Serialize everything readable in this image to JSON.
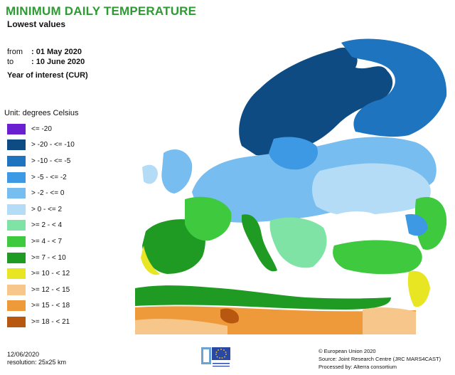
{
  "title": "MINIMUM DAILY TEMPERATURE",
  "subtitle": "Lowest values",
  "period": {
    "from_label": "from",
    "from_value": ": 01 May 2020",
    "to_label": "to",
    "to_value": ": 10 June 2020"
  },
  "year_of_interest": "Year of interest (CUR)",
  "unit": "Unit: degrees Celsius",
  "legend": [
    {
      "label": "<= -20",
      "color": "#6a1fd0"
    },
    {
      "label": "> -20 - <= -10",
      "color": "#0e4b83"
    },
    {
      "label": "> -10 - <= -5",
      "color": "#1f74c0"
    },
    {
      "label": "> -5 - <= -2",
      "color": "#3d99e3"
    },
    {
      "label": "> -2 - <= 0",
      "color": "#78bdf0"
    },
    {
      "label": "> 0 - <= 2",
      "color": "#b5dcf6"
    },
    {
      "label": ">= 2 - < 4",
      "color": "#7fe3a6"
    },
    {
      "label": ">= 4 - < 7",
      "color": "#3ec93e"
    },
    {
      "label": ">= 7 - < 10",
      "color": "#1f9a22"
    },
    {
      "label": ">= 10 - < 12",
      "color": "#e8e622"
    },
    {
      "label": ">= 12 - < 15",
      "color": "#f6c68a"
    },
    {
      "label": ">= 15 - < 18",
      "color": "#ef9a3a"
    },
    {
      "label": ">= 18 - < 21",
      "color": "#b85710"
    }
  ],
  "footer": {
    "date": "12/06/2020",
    "resolution": "resolution: 25x25 km",
    "copyright": "© European Union 2020",
    "source": "Source: Joint Research Centre (JRC MARS4CAST)",
    "processed": "Processed by: Alterra consortium"
  }
}
